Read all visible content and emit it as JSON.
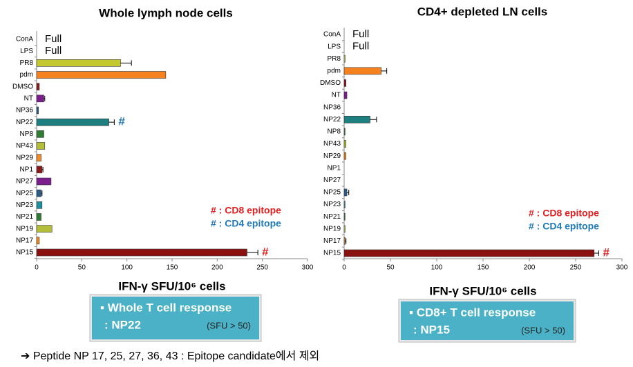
{
  "chart_data": [
    {
      "type": "bar",
      "orientation": "horizontal",
      "title": "Whole lymph node cells",
      "x_label": "IFN-γ SFU/10⁶ cells",
      "categories": [
        "ConA",
        "LPS",
        "PR8",
        "pdm",
        "DMSO",
        "NT",
        "NP36",
        "NP22",
        "NP8",
        "NP43",
        "NP29",
        "NP1",
        "NP27",
        "NP25",
        "NP23",
        "NP21",
        "NP19",
        "NP17",
        "NP15"
      ],
      "values": [
        null,
        null,
        93,
        143,
        3,
        8,
        2,
        80,
        8,
        9,
        5,
        6,
        16,
        5,
        6,
        5,
        17,
        3,
        233
      ],
      "errors": [
        null,
        null,
        12,
        null,
        null,
        1,
        null,
        6,
        null,
        null,
        null,
        1,
        null,
        1,
        null,
        null,
        null,
        null,
        12
      ],
      "value_labels": [
        "Full",
        "Full",
        null,
        null,
        null,
        null,
        null,
        null,
        null,
        null,
        null,
        null,
        null,
        null,
        null,
        null,
        null,
        null,
        null
      ],
      "colors": [
        null,
        null,
        "#c2c82e",
        "#f5821f",
        "#8b1a1a",
        "#7b1f8e",
        "#2a5c8a",
        "#1f7f7f",
        "#2e7d32",
        "#b5be3a",
        "#f08a24",
        "#8b1a1a",
        "#7b1f8e",
        "#2a5c8a",
        "#1f8f9f",
        "#2e7d32",
        "#b5be3a",
        "#f08a24",
        "#8b1010"
      ],
      "marker_labels": [
        null,
        null,
        null,
        null,
        null,
        null,
        null,
        "#",
        null,
        null,
        null,
        null,
        null,
        null,
        null,
        null,
        null,
        null,
        "#"
      ],
      "marker_colors": [
        null,
        null,
        null,
        null,
        null,
        null,
        null,
        "#1f7ab5",
        null,
        null,
        null,
        null,
        null,
        null,
        null,
        null,
        null,
        null,
        "#e02020"
      ],
      "notes": [
        {
          "text": "# : CD8 epitope",
          "color": "#e02020"
        },
        {
          "text": "# : CD4 epitope",
          "color": "#1f7ab5"
        }
      ],
      "xlim": [
        0,
        300
      ],
      "xticks": [
        0,
        50,
        100,
        150,
        200,
        250,
        300
      ]
    },
    {
      "type": "bar",
      "orientation": "horizontal",
      "title": "CD4+ depleted LN cells",
      "x_label": "IFN-γ SFU/10⁶ cells",
      "categories": [
        "ConA",
        "LPS",
        "PR8",
        "pdm",
        "DMSO",
        "NT",
        "NP36",
        "NP22",
        "NP8",
        "NP43",
        "NP29",
        "NP1",
        "NP27",
        "NP25",
        "NP23",
        "NP21",
        "NP19",
        "NP17",
        "NP15"
      ],
      "values": [
        null,
        null,
        1,
        40,
        2,
        3,
        0,
        28,
        1,
        2,
        2,
        0,
        0,
        3,
        1,
        1,
        1,
        1,
        270
      ],
      "errors": [
        null,
        null,
        null,
        6,
        null,
        null,
        null,
        7,
        null,
        null,
        null,
        null,
        null,
        2,
        null,
        null,
        null,
        1,
        5
      ],
      "value_labels": [
        "Full",
        "Full",
        null,
        null,
        null,
        null,
        null,
        null,
        null,
        null,
        null,
        null,
        null,
        null,
        null,
        null,
        null,
        null,
        null
      ],
      "colors": [
        null,
        null,
        "#c2c82e",
        "#f5821f",
        "#8b1a1a",
        "#7b1f8e",
        "#2a5c8a",
        "#1f7f7f",
        "#2e7d32",
        "#b5be3a",
        "#f08a24",
        "#8b1a1a",
        "#7b1f8e",
        "#2a5c8a",
        "#1f8f9f",
        "#2e7d32",
        "#b5be3a",
        "#f08a24",
        "#8b1010"
      ],
      "marker_labels": [
        null,
        null,
        null,
        null,
        null,
        null,
        null,
        null,
        null,
        null,
        null,
        null,
        null,
        null,
        null,
        null,
        null,
        null,
        "#"
      ],
      "marker_colors": [
        null,
        null,
        null,
        null,
        null,
        null,
        null,
        null,
        null,
        null,
        null,
        null,
        null,
        null,
        null,
        null,
        null,
        null,
        "#e02020"
      ],
      "notes": [
        {
          "text": "# : CD8 epitope",
          "color": "#e02020"
        },
        {
          "text": "# : CD4 epitope",
          "color": "#1f7ab5"
        }
      ],
      "xlim": [
        0,
        300
      ],
      "xticks": [
        0,
        50,
        100,
        150,
        200,
        250,
        300
      ]
    }
  ],
  "callouts": [
    {
      "line1": "▪  Whole T cell response",
      "line2": ": NP22",
      "note": "(SFU > 50)"
    },
    {
      "line1": "▪  CD8+ T cell response",
      "line2": ": NP15",
      "note": "(SFU > 50)"
    }
  ],
  "footnote": "➔ Peptide  NP 17, 25, 27, 36, 43 : Epitope candidate에서 제외"
}
